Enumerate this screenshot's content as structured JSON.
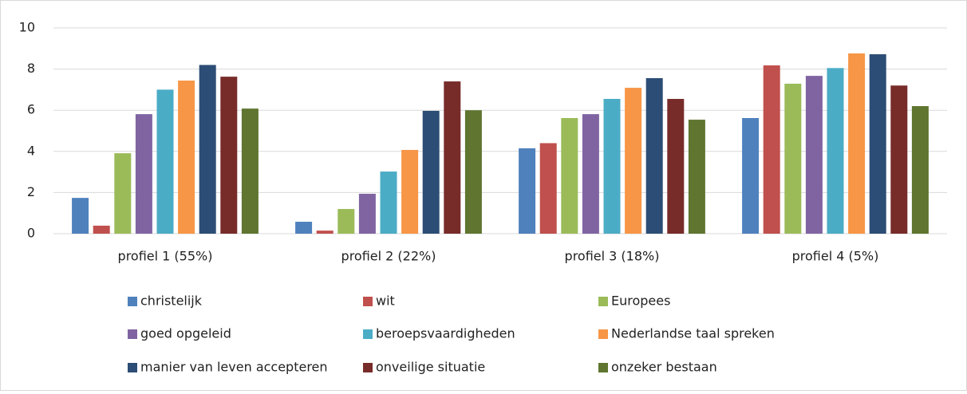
{
  "chart_data": {
    "type": "bar",
    "categories": [
      "profiel 1 (55%)",
      "profiel 2 (22%)",
      "profiel 3 (18%)",
      "profiel 4 (5%)"
    ],
    "series": [
      {
        "name": "christelijk",
        "color": "#4f81bd",
        "values": [
          1.74,
          0.58,
          4.15,
          5.62
        ]
      },
      {
        "name": "wit",
        "color": "#c0504d",
        "values": [
          0.39,
          0.15,
          4.4,
          8.18
        ]
      },
      {
        "name": "Europees",
        "color": "#9bbb59",
        "values": [
          3.91,
          1.2,
          5.62,
          7.29
        ]
      },
      {
        "name": "goed opgeleid",
        "color": "#8064a2",
        "values": [
          5.81,
          1.94,
          5.81,
          7.67
        ]
      },
      {
        "name": "beroepsvaardigheden",
        "color": "#4bacc6",
        "values": [
          7.0,
          3.02,
          6.55,
          8.05
        ]
      },
      {
        "name": "Nederlandse taal spreken",
        "color": "#f79646",
        "values": [
          7.44,
          4.07,
          7.09,
          8.76
        ]
      },
      {
        "name": "manier van leven accepteren",
        "color": "#2c4d75",
        "values": [
          8.2,
          5.97,
          7.56,
          8.72
        ]
      },
      {
        "name": "onveilige situatie",
        "color": "#772c2a",
        "values": [
          7.63,
          7.4,
          6.55,
          7.2
        ]
      },
      {
        "name": "onzeker bestaan",
        "color": "#5f7530",
        "values": [
          6.08,
          6.0,
          5.54,
          6.2
        ]
      }
    ],
    "ylim": [
      0,
      10
    ],
    "yticks": [
      0,
      2,
      4,
      6,
      8,
      10
    ],
    "grid": true,
    "legend": "bottom"
  }
}
